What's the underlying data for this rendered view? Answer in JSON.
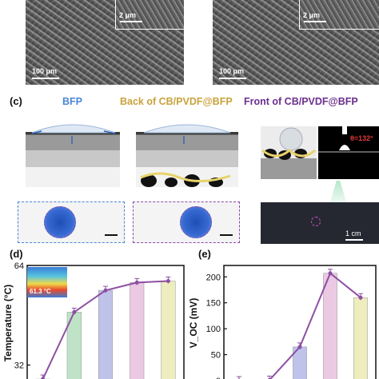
{
  "sem": {
    "left": {
      "inset_scale": "2 μm",
      "scale": "100 μm"
    },
    "right": {
      "inset_scale": "2 μm",
      "scale": "100 μm"
    }
  },
  "panel_c": {
    "letter": "(c)",
    "titles": [
      "BFP",
      "Back of CB/PVDF@BFP",
      "Front of CB/PVDF@BFP"
    ],
    "angle": "θ=132°",
    "scale": "1 cm"
  },
  "panel_d": {
    "letter": "(d)",
    "inset_temp": "61.3 °C"
  },
  "panel_e": {
    "letter": "(e)"
  },
  "colors": {
    "bfp_blue": "#4a86d6",
    "gold": "#c9a23c",
    "purple": "#6b2f8f",
    "line": "#8d4fa3"
  },
  "chart_data": [
    {
      "type": "bar",
      "ylabel": "Temperature (°C)",
      "yticks": [
        "32",
        "64"
      ],
      "ylim": [
        27,
        64
      ],
      "values": [
        27.5,
        49,
        56,
        58.5,
        59
      ],
      "bar_colors": [
        "#c8d9a8",
        "#b7e0c0",
        "#b9bde8",
        "#e9c4e0",
        "#ececb8"
      ]
    },
    {
      "type": "bar",
      "ylabel": "V_OC (mV)",
      "yticks": [
        "0",
        "50",
        "100",
        "150",
        "200"
      ],
      "ylim": [
        0,
        222
      ],
      "values": [
        0,
        1,
        65,
        207,
        160
      ],
      "bar_colors": [
        "#c8d9a8",
        "#b7e0c0",
        "#b9bde8",
        "#e9c4e0",
        "#ececb8"
      ]
    }
  ]
}
